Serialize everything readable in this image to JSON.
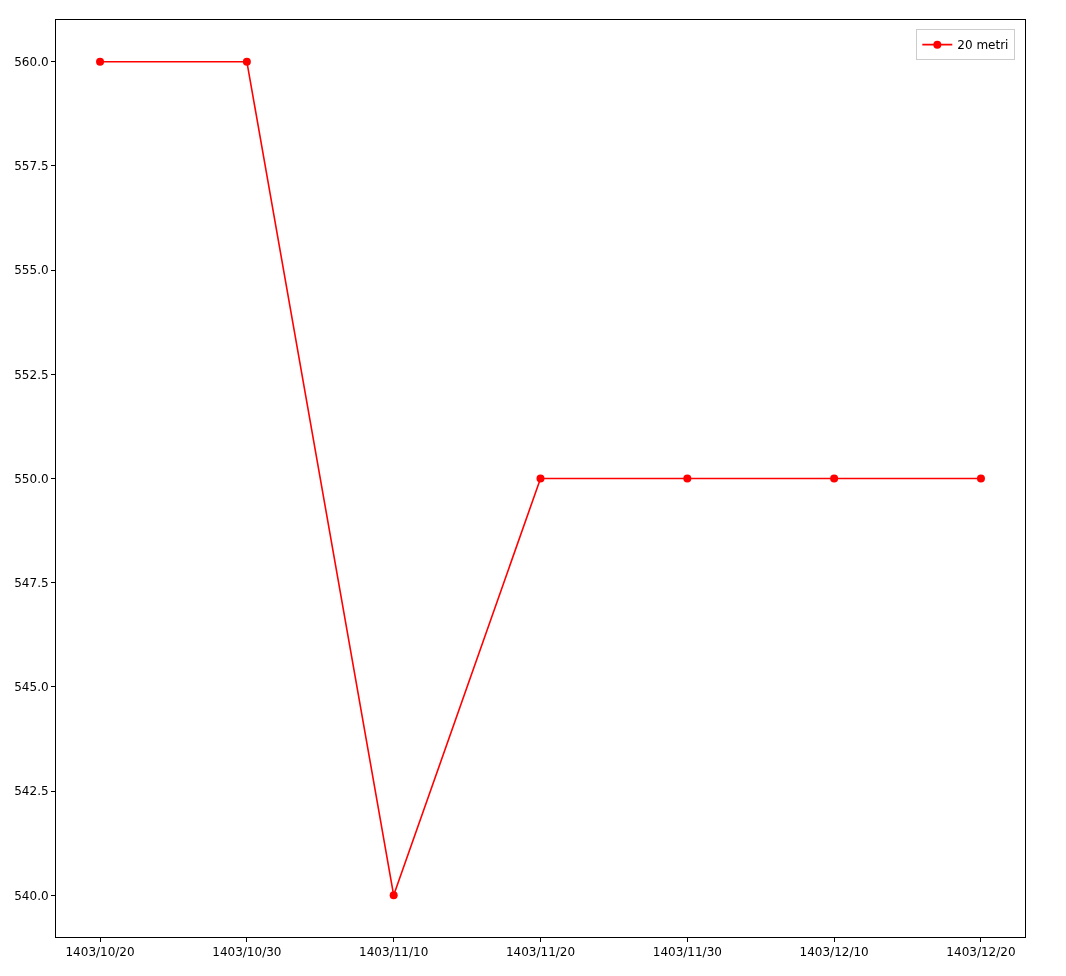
{
  "chart_data": {
    "type": "line",
    "categories": [
      "1403/10/20",
      "1403/10/30",
      "1403/11/10",
      "1403/11/20",
      "1403/11/30",
      "1403/12/10",
      "1403/12/20"
    ],
    "series": [
      {
        "name": "20 metri",
        "color": "#ff0000",
        "values": [
          560,
          560,
          540,
          550,
          550,
          550,
          550
        ]
      }
    ],
    "ylim": [
      539,
      561
    ],
    "yticks": [
      {
        "value": 540,
        "label": "540.0"
      },
      542.5,
      {
        "value": 545,
        "label": "545.0"
      },
      547.5,
      {
        "value": 550,
        "label": "550.0"
      },
      552.5,
      {
        "value": 555,
        "label": "555.0"
      },
      557.5,
      {
        "value": 560,
        "label": "560.0"
      }
    ],
    "marker": "circle",
    "line_style": "solid",
    "legend": "top right",
    "grid": false
  }
}
